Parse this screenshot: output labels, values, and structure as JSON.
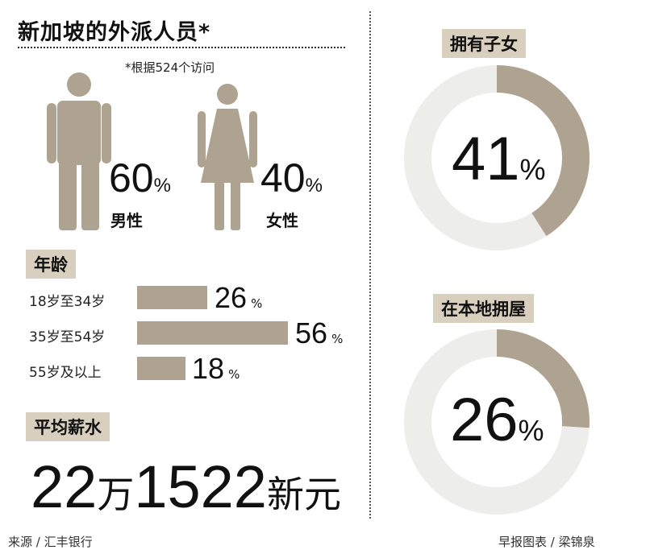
{
  "title": "新加坡的外派人员*",
  "note": "*根据524个访问",
  "gender": {
    "male": {
      "value": "60",
      "unit": "%",
      "label": "男性"
    },
    "female": {
      "value": "40",
      "unit": "%",
      "label": "女性"
    }
  },
  "age": {
    "heading": "年龄",
    "rows": [
      {
        "label": "18岁至34岁",
        "value": "26",
        "unit": "%"
      },
      {
        "label": "35岁至54岁",
        "value": "56",
        "unit": "%"
      },
      {
        "label": "55岁及以上",
        "value": "18",
        "unit": "%"
      }
    ]
  },
  "salary": {
    "heading": "平均薪水",
    "part1": "22",
    "part2": "万",
    "part3": "1522",
    "part4": "新元"
  },
  "children": {
    "heading": "拥有子女",
    "value": "41",
    "unit": "%"
  },
  "home": {
    "heading": "在本地拥屋",
    "value": "26",
    "unit": "%"
  },
  "footer": {
    "source": "来源 / 汇丰银行",
    "credit": "早报图表 / 梁锦泉"
  },
  "colors": {
    "accent": "#aea390",
    "tag": "#d9cfbe",
    "track": "#ededec"
  },
  "chart_data": [
    {
      "type": "pie",
      "categories": [
        "男性",
        "女性"
      ],
      "values": [
        60,
        40
      ]
    },
    {
      "type": "bar",
      "title": "年龄",
      "categories": [
        "18岁至34岁",
        "35岁至54岁",
        "55岁及以上"
      ],
      "values": [
        26,
        56,
        18
      ]
    },
    {
      "type": "pie",
      "title": "拥有子女",
      "values": [
        41
      ]
    },
    {
      "type": "pie",
      "title": "在本地拥屋",
      "values": [
        26
      ]
    }
  ]
}
